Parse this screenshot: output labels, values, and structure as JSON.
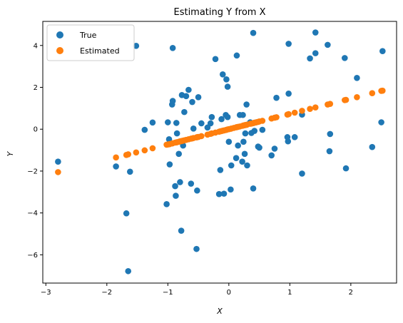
{
  "chart_data": {
    "type": "scatter",
    "title": "Estimating Y from X",
    "xlabel": "X",
    "ylabel": "Y",
    "xlim": [
      -3.05,
      2.75
    ],
    "ylim": [
      -7.35,
      5.15
    ],
    "xticks": [
      -3,
      -2,
      -1,
      0,
      1,
      2
    ],
    "yticks": [
      -6,
      -4,
      -2,
      0,
      2,
      4
    ],
    "xtick_labels": [
      "−3",
      "−2",
      "−1",
      "0",
      "1",
      "2"
    ],
    "ytick_labels": [
      "−6",
      "−4",
      "−2",
      "0",
      "2",
      "4"
    ],
    "grid": false,
    "legend": {
      "position": "top-left"
    },
    "series": [
      {
        "name": "True",
        "color": "#1f77b4",
        "points": [
          [
            -2.8,
            -1.55
          ],
          [
            -1.85,
            -1.78
          ],
          [
            -1.68,
            -4.02
          ],
          [
            -1.65,
            -6.78
          ],
          [
            -1.62,
            -2.03
          ],
          [
            -1.52,
            3.98
          ],
          [
            -1.38,
            -0.03
          ],
          [
            -1.25,
            0.32
          ],
          [
            -1.02,
            -3.58
          ],
          [
            -0.98,
            -0.48
          ],
          [
            -1.0,
            0.33
          ],
          [
            -0.97,
            -1.68
          ],
          [
            -0.93,
            1.18
          ],
          [
            -0.92,
            1.35
          ],
          [
            -0.92,
            3.88
          ],
          [
            -0.88,
            -2.72
          ],
          [
            -0.87,
            -3.18
          ],
          [
            -0.86,
            0.3
          ],
          [
            -0.85,
            -0.2
          ],
          [
            -0.82,
            -1.18
          ],
          [
            -0.8,
            -2.53
          ],
          [
            -0.78,
            -4.85
          ],
          [
            -0.77,
            1.63
          ],
          [
            -0.75,
            -0.78
          ],
          [
            -0.73,
            0.82
          ],
          [
            -0.7,
            1.58
          ],
          [
            -0.66,
            1.88
          ],
          [
            -0.62,
            -2.6
          ],
          [
            -0.6,
            1.3
          ],
          [
            -0.58,
            0.03
          ],
          [
            -0.53,
            -5.72
          ],
          [
            -0.52,
            -2.93
          ],
          [
            -0.5,
            1.53
          ],
          [
            -0.45,
            0.28
          ],
          [
            -0.35,
            0.08
          ],
          [
            -0.3,
            0.28
          ],
          [
            -0.28,
            0.58
          ],
          [
            -0.22,
            3.35
          ],
          [
            -0.16,
            -3.1
          ],
          [
            -0.14,
            -1.95
          ],
          [
            -0.12,
            0.48
          ],
          [
            -0.1,
            2.62
          ],
          [
            -0.08,
            -3.08
          ],
          [
            -0.05,
            0.68
          ],
          [
            -0.04,
            2.38
          ],
          [
            -0.02,
            2.03
          ],
          [
            -0.02,
            0.58
          ],
          [
            0.0,
            -0.6
          ],
          [
            0.03,
            -2.88
          ],
          [
            0.04,
            -1.73
          ],
          [
            0.12,
            -1.38
          ],
          [
            0.13,
            3.52
          ],
          [
            0.15,
            -0.78
          ],
          [
            0.18,
            0.68
          ],
          [
            0.22,
            -1.55
          ],
          [
            0.23,
            0.68
          ],
          [
            0.24,
            -0.6
          ],
          [
            0.26,
            -1.18
          ],
          [
            0.27,
            -0.2
          ],
          [
            0.29,
            1.18
          ],
          [
            0.3,
            -1.73
          ],
          [
            0.35,
            0.33
          ],
          [
            0.37,
            -0.18
          ],
          [
            0.4,
            -2.83
          ],
          [
            0.4,
            4.6
          ],
          [
            0.42,
            -0.08
          ],
          [
            0.45,
            0.33
          ],
          [
            0.48,
            -0.83
          ],
          [
            0.5,
            -0.88
          ],
          [
            0.55,
            -0.03
          ],
          [
            0.7,
            -1.25
          ],
          [
            0.75,
            -0.93
          ],
          [
            0.78,
            1.5
          ],
          [
            0.96,
            -0.38
          ],
          [
            0.97,
            -0.58
          ],
          [
            0.98,
            1.7
          ],
          [
            0.98,
            4.08
          ],
          [
            1.08,
            -0.38
          ],
          [
            1.2,
            -2.12
          ],
          [
            1.2,
            0.7
          ],
          [
            1.33,
            3.38
          ],
          [
            1.42,
            4.62
          ],
          [
            1.42,
            3.63
          ],
          [
            1.62,
            4.03
          ],
          [
            1.65,
            -1.05
          ],
          [
            1.66,
            -0.23
          ],
          [
            1.9,
            3.4
          ],
          [
            1.92,
            -1.87
          ],
          [
            2.1,
            2.45
          ],
          [
            2.35,
            -0.85
          ],
          [
            2.5,
            0.33
          ],
          [
            2.52,
            3.73
          ]
        ]
      },
      {
        "name": "Estimated",
        "color": "#ff7f0e",
        "points": [
          [
            -2.8,
            -2.05
          ],
          [
            -1.85,
            -1.35
          ],
          [
            -1.68,
            -1.23
          ],
          [
            -1.65,
            -1.2
          ],
          [
            -1.52,
            -1.11
          ],
          [
            -1.38,
            -1.01
          ],
          [
            -1.25,
            -0.91
          ],
          [
            -1.02,
            -0.74
          ],
          [
            -1.0,
            -0.73
          ],
          [
            -0.98,
            -0.72
          ],
          [
            -0.97,
            -0.71
          ],
          [
            -0.93,
            -0.68
          ],
          [
            -0.92,
            -0.67
          ],
          [
            -0.88,
            -0.64
          ],
          [
            -0.86,
            -0.63
          ],
          [
            -0.85,
            -0.62
          ],
          [
            -0.82,
            -0.6
          ],
          [
            -0.8,
            -0.58
          ],
          [
            -0.78,
            -0.57
          ],
          [
            -0.77,
            -0.56
          ],
          [
            -0.75,
            -0.55
          ],
          [
            -0.73,
            -0.53
          ],
          [
            -0.7,
            -0.51
          ],
          [
            -0.66,
            -0.48
          ],
          [
            -0.62,
            -0.45
          ],
          [
            -0.6,
            -0.44
          ],
          [
            -0.58,
            -0.42
          ],
          [
            -0.53,
            -0.39
          ],
          [
            -0.52,
            -0.38
          ],
          [
            -0.5,
            -0.37
          ],
          [
            -0.45,
            -0.33
          ],
          [
            -0.35,
            -0.26
          ],
          [
            -0.3,
            -0.22
          ],
          [
            -0.28,
            -0.2
          ],
          [
            -0.22,
            -0.16
          ],
          [
            -0.16,
            -0.12
          ],
          [
            -0.14,
            -0.1
          ],
          [
            -0.12,
            -0.09
          ],
          [
            -0.1,
            -0.07
          ],
          [
            -0.08,
            -0.06
          ],
          [
            -0.05,
            -0.04
          ],
          [
            -0.04,
            -0.03
          ],
          [
            -0.02,
            -0.01
          ],
          [
            0.0,
            0.0
          ],
          [
            0.03,
            0.02
          ],
          [
            0.04,
            0.03
          ],
          [
            0.08,
            0.06
          ],
          [
            0.12,
            0.09
          ],
          [
            0.13,
            0.1
          ],
          [
            0.15,
            0.11
          ],
          [
            0.18,
            0.13
          ],
          [
            0.22,
            0.16
          ],
          [
            0.24,
            0.18
          ],
          [
            0.26,
            0.19
          ],
          [
            0.27,
            0.2
          ],
          [
            0.29,
            0.21
          ],
          [
            0.3,
            0.22
          ],
          [
            0.35,
            0.26
          ],
          [
            0.37,
            0.27
          ],
          [
            0.4,
            0.29
          ],
          [
            0.42,
            0.31
          ],
          [
            0.45,
            0.33
          ],
          [
            0.48,
            0.35
          ],
          [
            0.5,
            0.37
          ],
          [
            0.55,
            0.4
          ],
          [
            0.7,
            0.51
          ],
          [
            0.75,
            0.55
          ],
          [
            0.78,
            0.57
          ],
          [
            0.96,
            0.7
          ],
          [
            0.98,
            0.72
          ],
          [
            1.08,
            0.79
          ],
          [
            1.2,
            0.88
          ],
          [
            1.33,
            0.97
          ],
          [
            1.42,
            1.04
          ],
          [
            1.62,
            1.18
          ],
          [
            1.66,
            1.21
          ],
          [
            1.9,
            1.39
          ],
          [
            1.92,
            1.4
          ],
          [
            2.1,
            1.53
          ],
          [
            2.35,
            1.72
          ],
          [
            2.5,
            1.83
          ],
          [
            2.52,
            1.84
          ]
        ]
      }
    ]
  }
}
